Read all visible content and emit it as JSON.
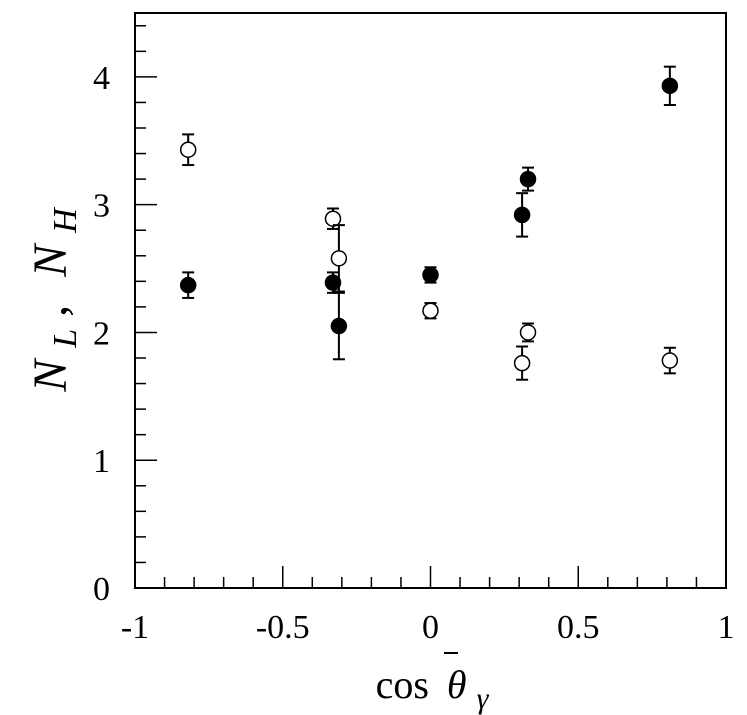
{
  "chart_data": {
    "type": "scatter",
    "xlabel_base": "cos",
    "xlabel_symbol": "θ",
    "xlabel_subscript": "γ",
    "ylabel_first": "N",
    "ylabel_first_sub": "L",
    "ylabel_separator": ",",
    "ylabel_second": "N",
    "ylabel_second_sub": "H",
    "xlim": [
      -1,
      1
    ],
    "ylim": [
      0,
      4.5
    ],
    "x_ticks": [
      {
        "value": -1,
        "label": "-1"
      },
      {
        "value": -0.5,
        "label": "-0.5"
      },
      {
        "value": 0,
        "label": "0"
      },
      {
        "value": 0.5,
        "label": "0.5"
      },
      {
        "value": 1,
        "label": "1"
      }
    ],
    "y_ticks": [
      {
        "value": 0,
        "label": "0"
      },
      {
        "value": 1,
        "label": "1"
      },
      {
        "value": 2,
        "label": "2"
      },
      {
        "value": 3,
        "label": "3"
      },
      {
        "value": 4,
        "label": "4"
      }
    ],
    "grid": false,
    "series": [
      {
        "marker": "filled-circle",
        "color": "#000000",
        "points": [
          {
            "x": -0.82,
            "y": 2.37,
            "err": 0.1
          },
          {
            "x": -0.33,
            "y": 2.39,
            "err": 0.08
          },
          {
            "x": -0.31,
            "y": 2.05,
            "err": 0.26
          },
          {
            "x": 0.0,
            "y": 2.45,
            "err": 0.06
          },
          {
            "x": 0.31,
            "y": 2.92,
            "err": 0.17
          },
          {
            "x": 0.33,
            "y": 3.2,
            "err": 0.09
          },
          {
            "x": 0.81,
            "y": 3.93,
            "err": 0.15
          }
        ]
      },
      {
        "marker": "open-circle",
        "color": "#000000",
        "points": [
          {
            "x": -0.82,
            "y": 3.43,
            "err": 0.12
          },
          {
            "x": -0.33,
            "y": 2.89,
            "err": 0.08
          },
          {
            "x": -0.31,
            "y": 2.58,
            "err": 0.26
          },
          {
            "x": 0.0,
            "y": 2.17,
            "err": 0.06
          },
          {
            "x": 0.31,
            "y": 1.76,
            "err": 0.13
          },
          {
            "x": 0.33,
            "y": 2.0,
            "err": 0.07
          },
          {
            "x": 0.81,
            "y": 1.78,
            "err": 0.1
          }
        ]
      }
    ]
  }
}
